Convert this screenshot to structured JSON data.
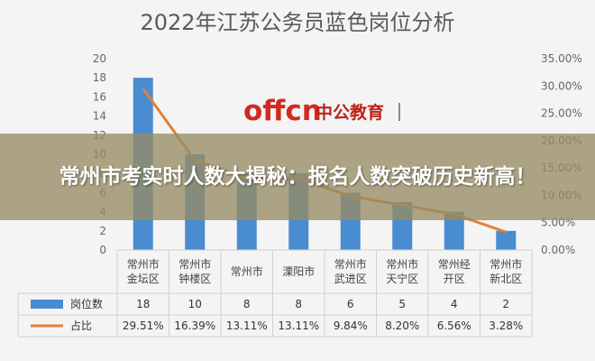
{
  "headline": "常州市考实时人数大揭秘：报名人数突破历史新高！",
  "logo": {
    "brand": "offcn",
    "name": "中公教育"
  },
  "chart_data": {
    "type": "bar",
    "title": "2022年江苏公务员蓝色岗位分析",
    "categories": [
      [
        "常州市",
        "金坛区"
      ],
      [
        "常州市",
        "钟楼区"
      ],
      [
        "常州市"
      ],
      [
        "溧阳市"
      ],
      [
        "常州市",
        "武进区"
      ],
      [
        "常州市",
        "天宁区"
      ],
      [
        "常州经",
        "开区"
      ],
      [
        "常州市",
        "新北区"
      ]
    ],
    "y_ticks": [
      "0",
      "2",
      "4",
      "6",
      "8",
      "10",
      "12",
      "14",
      "16",
      "18",
      "20"
    ],
    "y2_ticks": [
      "0.00%",
      "5.00%",
      "10.00%",
      "15.00%",
      "20.00%",
      "25.00%",
      "30.00%",
      "35.00%"
    ],
    "ylim": [
      0,
      20
    ],
    "y2lim": [
      0,
      35
    ],
    "series": [
      {
        "name": "岗位数",
        "kind": "bar",
        "color": "#4a8cd0",
        "values": [
          18,
          10,
          8,
          8,
          6,
          5,
          4,
          2
        ],
        "labels": [
          "18",
          "10",
          "8",
          "8",
          "6",
          "5",
          "4",
          "2"
        ]
      },
      {
        "name": "占比",
        "kind": "line",
        "color": "#e0813a",
        "values": [
          29.51,
          16.39,
          13.11,
          13.11,
          9.84,
          8.2,
          6.56,
          3.28
        ],
        "labels": [
          "29.51%",
          "16.39%",
          "13.11%",
          "13.11%",
          "9.84%",
          "8.20%",
          "6.56%",
          "3.28%"
        ]
      }
    ],
    "grid": false,
    "legend": "data-table"
  }
}
